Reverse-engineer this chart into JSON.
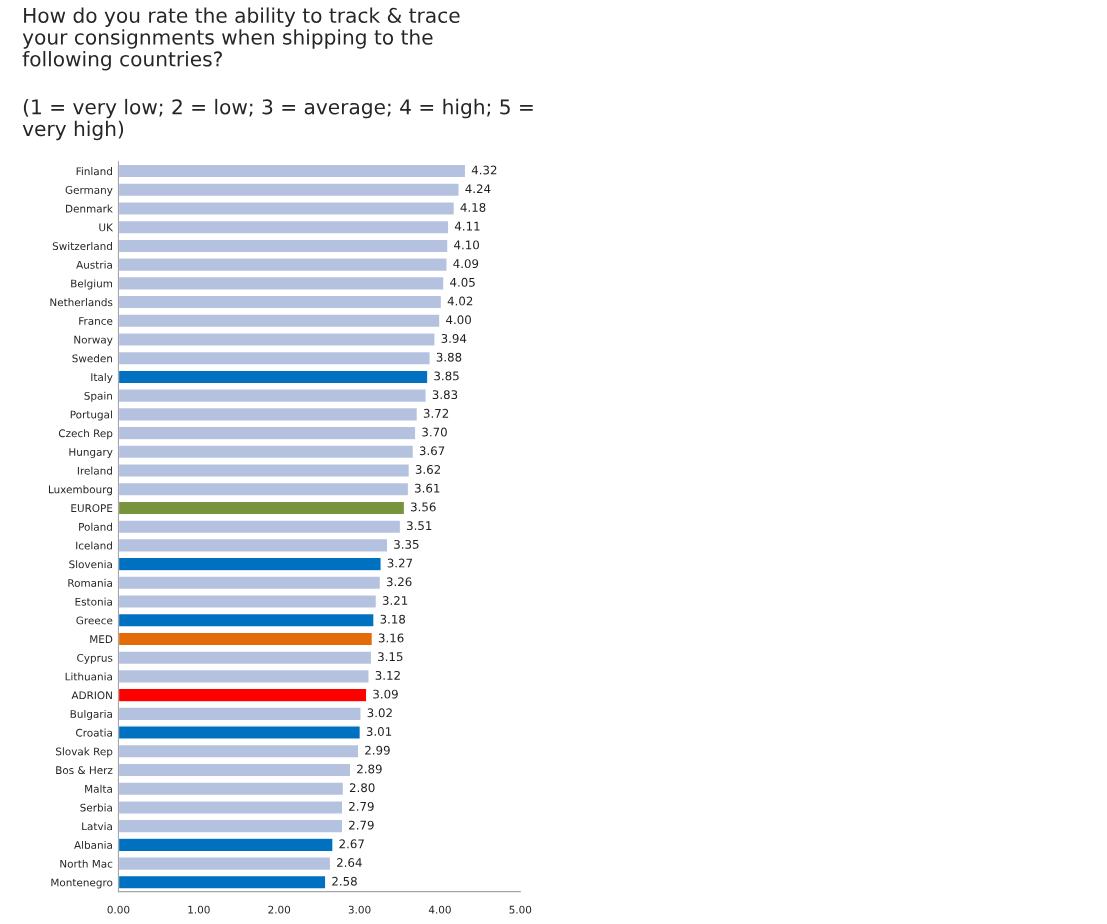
{
  "chart_data": {
    "type": "bar",
    "orientation": "horizontal",
    "title": "How do you rate the ability to track & trace\nyour consignments when shipping to the\nfollowing countries?",
    "subtitle": "(1 = very low; 2 = low; 3 = average; 4 = high; 5 =\nvery high)",
    "categories": [
      "Finland",
      "Germany",
      "Denmark",
      "UK",
      "Switzerland",
      "Austria",
      "Belgium",
      "Netherlands",
      "France",
      "Norway",
      "Sweden",
      "Italy",
      "Spain",
      "Portugal",
      "Czech Rep",
      "Hungary",
      "Ireland",
      "Luxembourg",
      "EUROPE",
      "Poland",
      "Iceland",
      "Slovenia",
      "Romania",
      "Estonia",
      "Greece",
      "MED",
      "Cyprus",
      "Lithuania",
      "ADRION",
      "Bulgaria",
      "Croatia",
      "Slovak Rep",
      "Bos & Herz",
      "Malta",
      "Serbia",
      "Latvia",
      "Albania",
      "North Mac",
      "Montenegro"
    ],
    "values": [
      4.32,
      4.24,
      4.18,
      4.11,
      4.1,
      4.09,
      4.05,
      4.02,
      4.0,
      3.94,
      3.88,
      3.85,
      3.83,
      3.72,
      3.7,
      3.67,
      3.62,
      3.61,
      3.56,
      3.51,
      3.35,
      3.27,
      3.26,
      3.21,
      3.18,
      3.16,
      3.15,
      3.12,
      3.09,
      3.02,
      3.01,
      2.99,
      2.89,
      2.8,
      2.79,
      2.79,
      2.67,
      2.64,
      2.58
    ],
    "value_labels": [
      "4.32",
      "4.24",
      "4.18",
      "4.11",
      "4.10",
      "4.09",
      "4.05",
      "4.02",
      "4.00",
      "3.94",
      "3.88",
      "3.85",
      "3.83",
      "3.72",
      "3.70",
      "3.67",
      "3.62",
      "3.61",
      "3.56",
      "3.51",
      "3.35",
      "3.27",
      "3.26",
      "3.21",
      "3.18",
      "3.16",
      "3.15",
      "3.12",
      "3.09",
      "3.02",
      "3.01",
      "2.99",
      "2.89",
      "2.80",
      "2.79",
      "2.79",
      "2.67",
      "2.64",
      "2.58"
    ],
    "colors": [
      "#b4c2df",
      "#b4c2df",
      "#b4c2df",
      "#b4c2df",
      "#b4c2df",
      "#b4c2df",
      "#b4c2df",
      "#b4c2df",
      "#b4c2df",
      "#b4c2df",
      "#b4c2df",
      "#0070c0",
      "#b4c2df",
      "#b4c2df",
      "#b4c2df",
      "#b4c2df",
      "#b4c2df",
      "#b4c2df",
      "#77933c",
      "#b4c2df",
      "#b4c2df",
      "#0070c0",
      "#b4c2df",
      "#b4c2df",
      "#0070c0",
      "#e36c09",
      "#b4c2df",
      "#b4c2df",
      "#ff0000",
      "#b4c2df",
      "#0070c0",
      "#b4c2df",
      "#b4c2df",
      "#b4c2df",
      "#b4c2df",
      "#b4c2df",
      "#0070c0",
      "#b4c2df",
      "#0070c0"
    ],
    "xlim": [
      0,
      5
    ],
    "xticks": [
      {
        "value": 0,
        "label": "0.00"
      },
      {
        "value": 1,
        "label": "1.00"
      },
      {
        "value": 2,
        "label": "2.00"
      },
      {
        "value": 3,
        "label": "3.00"
      },
      {
        "value": 4,
        "label": "4.00"
      },
      {
        "value": 5,
        "label": "5.00"
      }
    ],
    "grid": false,
    "legend": false
  }
}
